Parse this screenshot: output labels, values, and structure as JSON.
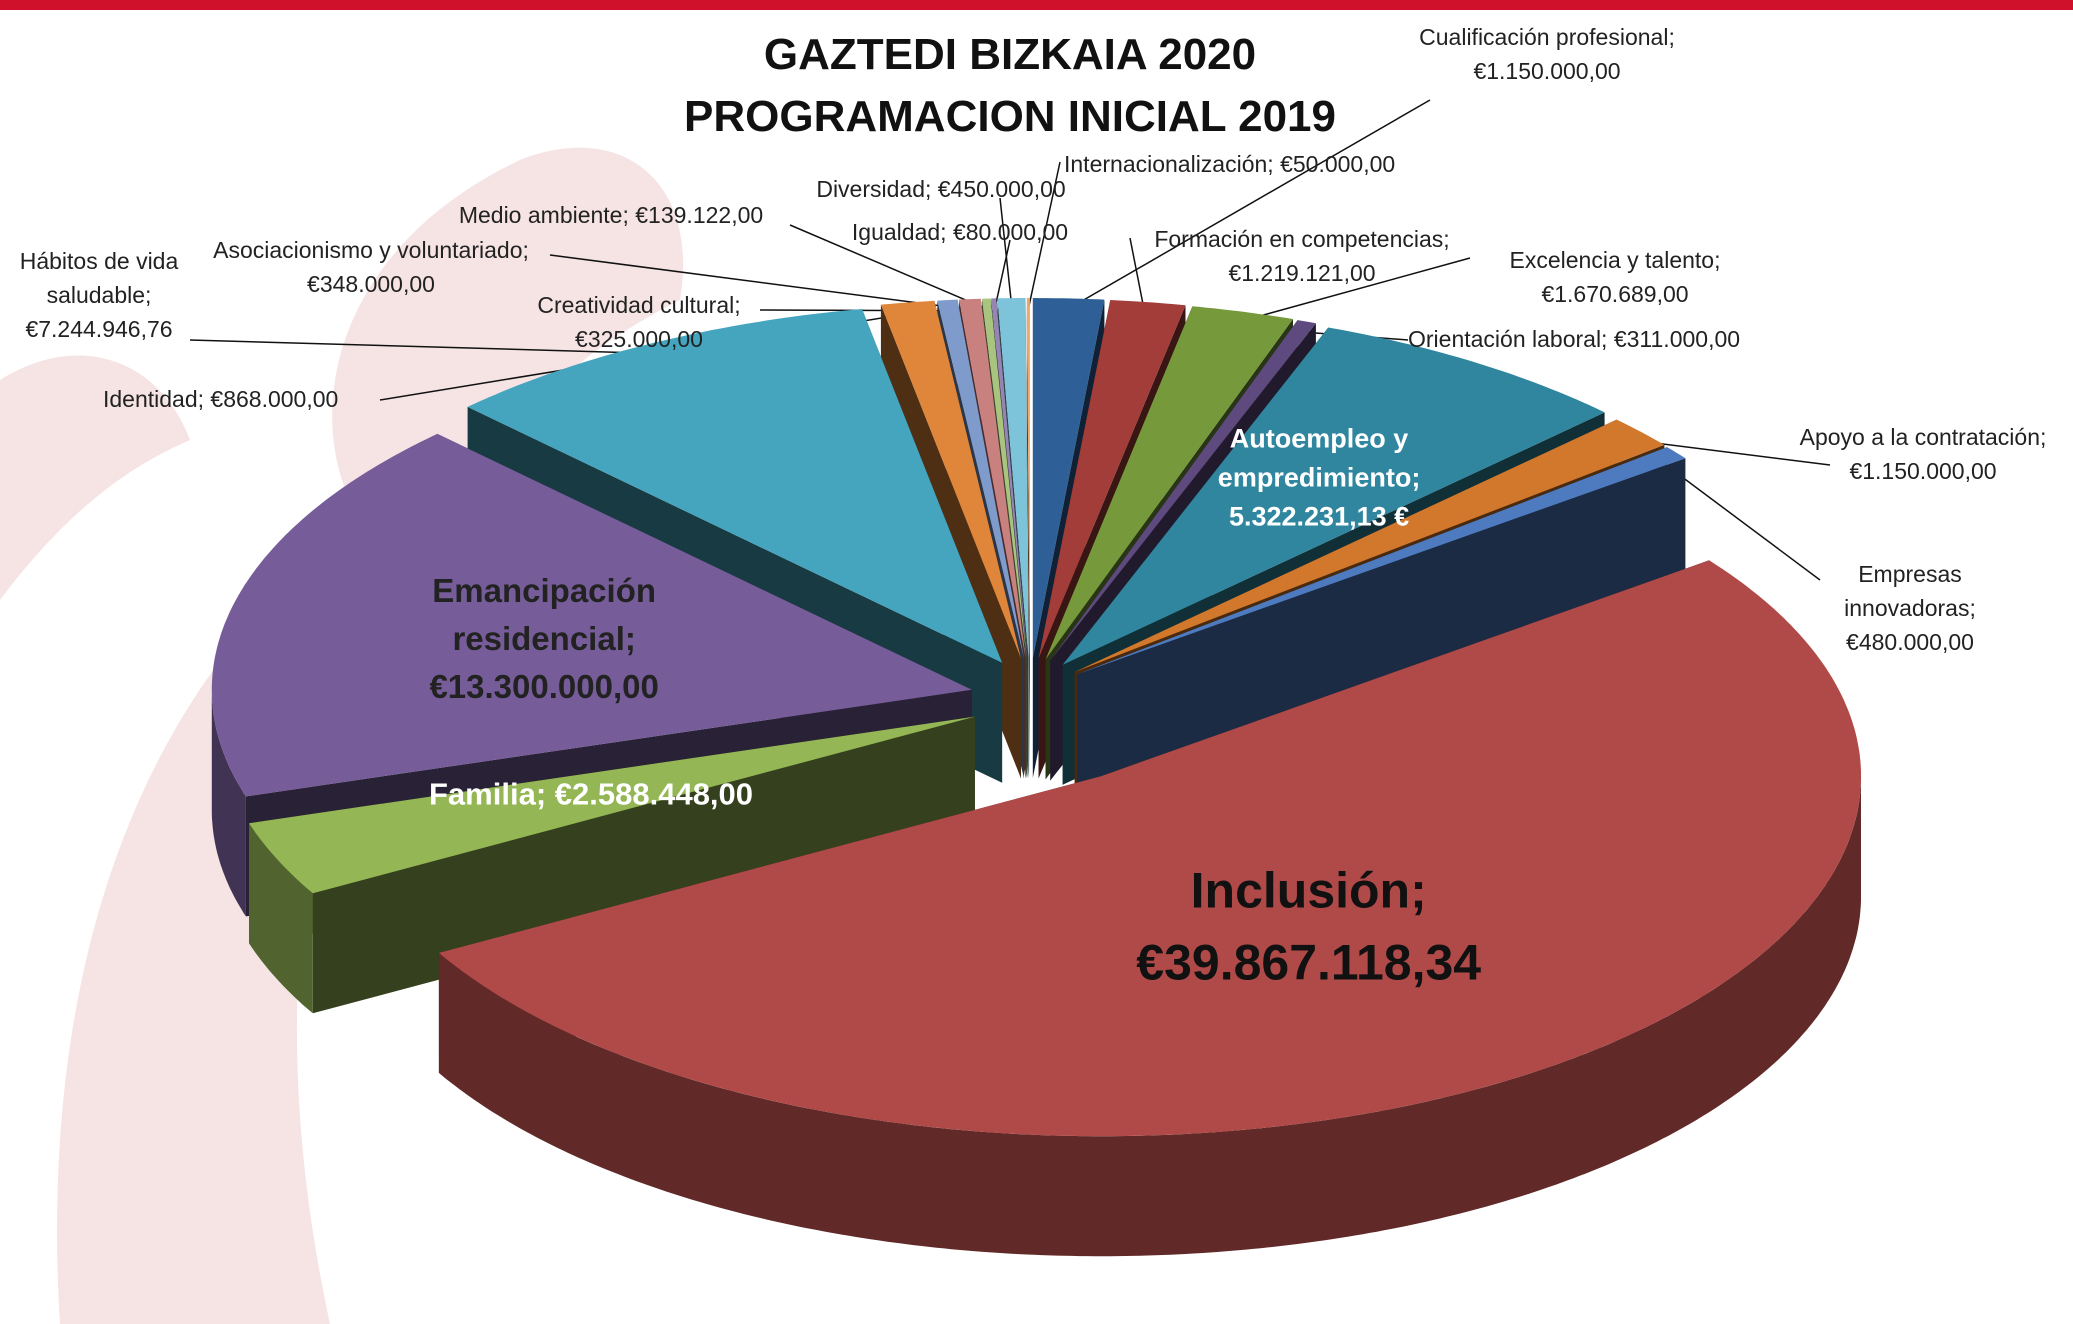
{
  "chart_data": {
    "type": "pie",
    "title": "GAZTEDI BIZKAIA 2020",
    "subtitle": "PROGRAMACION INICIAL 2019",
    "categories": [
      "Cualificación profesional;",
      "Formación en competencias;",
      "Excelencia y talento;",
      "Orientación laboral;",
      "Autoempleo y empredimiento;",
      "Apoyo a la contratación;",
      "Empresas innovadoras;",
      "Inclusión;",
      "Familia;",
      "Emancipación residencial;",
      "Hábitos de vida saludable;",
      "Identidad;",
      "Creatividad cultural;",
      "Asociacionismo y voluntariado;",
      "Medio ambiente;",
      "Igualdad;",
      "Diversidad;",
      "Internacionalización;"
    ],
    "values": [
      1150000,
      1219121,
      1670689,
      311000,
      5322231.13,
      1150000,
      480000,
      39867118.34,
      2588448,
      13300000,
      7244946.76,
      868000,
      325000,
      348000,
      139122,
      80000,
      450000,
      50000
    ],
    "value_labels": [
      "€1.150.000,00",
      "€1.219.121,00",
      "€1.670.689,00",
      "€311.000,00",
      "5.322.231,13 €",
      "€1.150.000,00",
      "€480.000,00",
      "€39.867.118,34",
      "€2.588.448,00",
      "€13.300.000,00",
      "€7.244.946,76",
      "€868.000,00",
      "€325.000,00",
      "€348.000,00",
      "€139.122,00",
      "€80.000,00",
      "€450.000,00",
      "€50.000,00"
    ],
    "colors": [
      "#2e5f96",
      "#a33d3a",
      "#76993c",
      "#5e4a7e",
      "#2f869e",
      "#d1782c",
      "#4e7ac0",
      "#b04a48",
      "#94b655",
      "#765d99",
      "#45a5bf",
      "#e0863a",
      "#7e9bcc",
      "#c9817f",
      "#a9c47f",
      "#9585b2",
      "#7dc3d9",
      "#f0a868"
    ]
  }
}
